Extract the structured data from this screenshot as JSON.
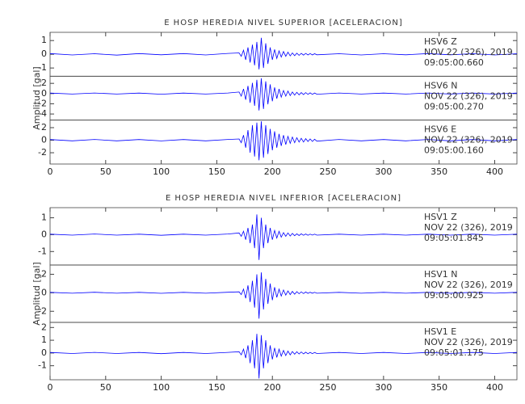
{
  "chart_data": [
    {
      "type": "line",
      "title": "E HOSP HEREDIA NIVEL SUPERIOR [ACELERACION]",
      "y_label": "Amplitud [gal]",
      "xlim": [
        0,
        420
      ],
      "xticks": [
        0,
        50,
        100,
        150,
        200,
        250,
        300,
        350,
        400
      ],
      "x": [
        0,
        20,
        40,
        60,
        80,
        100,
        120,
        140,
        160,
        170,
        172,
        174,
        176,
        178,
        180,
        182,
        184,
        186,
        188,
        190,
        192,
        194,
        196,
        198,
        200,
        202,
        204,
        206,
        208,
        210,
        212,
        214,
        216,
        218,
        220,
        222,
        224,
        226,
        228,
        230,
        232,
        234,
        236,
        238,
        240,
        260,
        280,
        300,
        320,
        340,
        360,
        380,
        400,
        420
      ],
      "panels": [
        {
          "station": "HSV6   Z",
          "date": "NOV 22 (326), 2019",
          "time": "09:05:00.660",
          "color": "#0000ff",
          "ylim": [
            -1.6,
            1.6
          ],
          "yticks": [
            -1,
            0,
            1
          ],
          "values": [
            0.05,
            -0.05,
            0.04,
            -0.06,
            0.05,
            -0.04,
            0.05,
            -0.05,
            0.06,
            0.1,
            -0.15,
            0.3,
            -0.4,
            0.5,
            -0.6,
            0.7,
            -0.8,
            0.9,
            -1.1,
            1.2,
            -1.0,
            0.8,
            -0.7,
            0.5,
            -0.4,
            0.35,
            -0.3,
            0.25,
            -0.2,
            0.2,
            -0.15,
            0.15,
            -0.12,
            0.1,
            -0.1,
            0.08,
            -0.08,
            0.07,
            -0.06,
            0.06,
            -0.05,
            0.05,
            -0.05,
            0.04,
            -0.04,
            0.04,
            -0.05,
            0.04,
            -0.04,
            0.05,
            -0.04,
            0.04,
            -0.05,
            0.04
          ]
        },
        {
          "station": "HSV6   N",
          "date": "NOV 22 (326), 2019",
          "time": "09:05:00.270",
          "color": "#0000ff",
          "ylim": [
            -5.2,
            3.4
          ],
          "yticks": [
            -4,
            -2,
            0,
            2
          ],
          "values": [
            0.1,
            -0.1,
            0.12,
            -0.1,
            0.1,
            -0.12,
            0.1,
            -0.1,
            0.12,
            0.3,
            -0.5,
            0.9,
            -1.2,
            1.5,
            -1.8,
            2.1,
            -2.4,
            2.7,
            -3.3,
            3.0,
            -3.0,
            2.4,
            -2.1,
            1.8,
            -1.5,
            1.2,
            -1.0,
            0.9,
            -0.7,
            0.6,
            -0.5,
            0.5,
            -0.4,
            0.3,
            -0.3,
            0.25,
            -0.25,
            0.2,
            -0.2,
            0.2,
            -0.15,
            0.15,
            -0.15,
            0.12,
            -0.12,
            0.12,
            -0.1,
            0.1,
            -0.1,
            0.12,
            -0.1,
            0.1,
            -0.1,
            0.1
          ]
        },
        {
          "station": "HSV6   E",
          "date": "NOV 22 (326), 2019",
          "time": "09:05:00.160",
          "color": "#0000ff",
          "ylim": [
            -3.8,
            3.2
          ],
          "yticks": [
            -2,
            0,
            2
          ],
          "values": [
            0.1,
            -0.1,
            0.12,
            -0.1,
            0.1,
            -0.12,
            0.1,
            -0.1,
            0.12,
            0.2,
            -0.4,
            0.8,
            -1.2,
            1.6,
            -2.0,
            2.4,
            -2.6,
            2.8,
            -3.2,
            3.0,
            -2.8,
            2.4,
            -2.2,
            1.8,
            -1.6,
            1.4,
            -1.2,
            1.0,
            -0.9,
            0.8,
            -0.7,
            0.6,
            -0.5,
            0.5,
            -0.4,
            0.4,
            -0.3,
            0.3,
            -0.3,
            0.25,
            -0.2,
            0.2,
            -0.2,
            0.15,
            -0.15,
            0.12,
            -0.1,
            0.1,
            -0.1,
            0.12,
            -0.1,
            0.1,
            -0.1,
            0.1
          ]
        }
      ]
    },
    {
      "type": "line",
      "title": "E HOSP HEREDIA NIVEL INFERIOR [ACELERACION]",
      "y_label": "Amplitud [gal]",
      "xlim": [
        0,
        420
      ],
      "xticks": [
        0,
        50,
        100,
        150,
        200,
        250,
        300,
        350,
        400
      ],
      "x": [
        0,
        20,
        40,
        60,
        80,
        100,
        120,
        140,
        160,
        170,
        172,
        174,
        176,
        178,
        180,
        182,
        184,
        186,
        188,
        190,
        192,
        194,
        196,
        198,
        200,
        202,
        204,
        206,
        208,
        210,
        212,
        214,
        216,
        218,
        220,
        222,
        224,
        226,
        228,
        230,
        232,
        234,
        236,
        238,
        240,
        260,
        280,
        300,
        320,
        340,
        360,
        380,
        400,
        420
      ],
      "panels": [
        {
          "station": "HSV1   Z",
          "date": "NOV 22 (326), 2019",
          "time": "09:05:01.845",
          "color": "#0000ff",
          "ylim": [
            -1.8,
            1.6
          ],
          "yticks": [
            -1,
            0,
            1
          ],
          "values": [
            0.03,
            -0.03,
            0.04,
            -0.03,
            0.03,
            -0.04,
            0.03,
            -0.03,
            0.04,
            0.1,
            -0.1,
            0.2,
            -0.3,
            0.4,
            -0.5,
            0.6,
            -0.8,
            1.2,
            -1.5,
            1.0,
            -0.8,
            0.6,
            -0.5,
            0.4,
            -0.3,
            0.25,
            -0.2,
            0.2,
            -0.15,
            0.12,
            -0.1,
            0.1,
            -0.08,
            0.07,
            -0.06,
            0.05,
            -0.05,
            0.05,
            -0.04,
            0.04,
            -0.04,
            0.03,
            -0.03,
            0.03,
            -0.03,
            0.03,
            -0.03,
            0.03,
            -0.03,
            0.03,
            -0.03,
            0.03,
            -0.03,
            0.03
          ]
        },
        {
          "station": "HSV1   N",
          "date": "NOV 22 (326), 2019",
          "time": "09:05:00.925",
          "color": "#0000ff",
          "ylim": [
            -3.2,
            3.0
          ],
          "yticks": [
            -2,
            0,
            2
          ],
          "values": [
            0.05,
            -0.05,
            0.06,
            -0.05,
            0.05,
            -0.06,
            0.05,
            -0.05,
            0.06,
            0.1,
            -0.2,
            0.4,
            -0.6,
            0.8,
            -1.0,
            1.3,
            -1.6,
            2.0,
            -2.8,
            2.2,
            -1.8,
            1.5,
            -1.2,
            1.0,
            -0.8,
            0.6,
            -0.5,
            0.4,
            -0.35,
            0.3,
            -0.25,
            0.2,
            -0.2,
            0.15,
            -0.15,
            0.12,
            -0.1,
            0.1,
            -0.08,
            0.08,
            -0.06,
            0.06,
            -0.05,
            0.05,
            -0.05,
            0.05,
            -0.05,
            0.05,
            -0.05,
            0.05,
            -0.05,
            0.05,
            -0.05,
            0.05
          ]
        },
        {
          "station": "HSV1   E",
          "date": "NOV 22 (326), 2019",
          "time": "09:05:01.175",
          "color": "#0000ff",
          "ylim": [
            -2.1,
            2.4
          ],
          "yticks": [
            -1,
            0,
            1,
            2
          ],
          "values": [
            0.04,
            -0.04,
            0.05,
            -0.04,
            0.04,
            -0.05,
            0.04,
            -0.04,
            0.05,
            0.1,
            -0.15,
            0.3,
            -0.4,
            0.6,
            -0.8,
            1.0,
            -1.2,
            1.5,
            -2.0,
            1.4,
            -1.2,
            1.0,
            -0.8,
            0.6,
            -0.5,
            0.4,
            -0.35,
            0.3,
            -0.25,
            0.2,
            -0.2,
            0.15,
            -0.15,
            0.12,
            -0.1,
            0.1,
            -0.08,
            0.08,
            -0.07,
            0.06,
            -0.06,
            0.05,
            -0.05,
            0.04,
            -0.04,
            0.04,
            -0.04,
            0.04,
            -0.04,
            0.04,
            -0.04,
            0.04,
            -0.04,
            0.04
          ]
        }
      ]
    }
  ]
}
